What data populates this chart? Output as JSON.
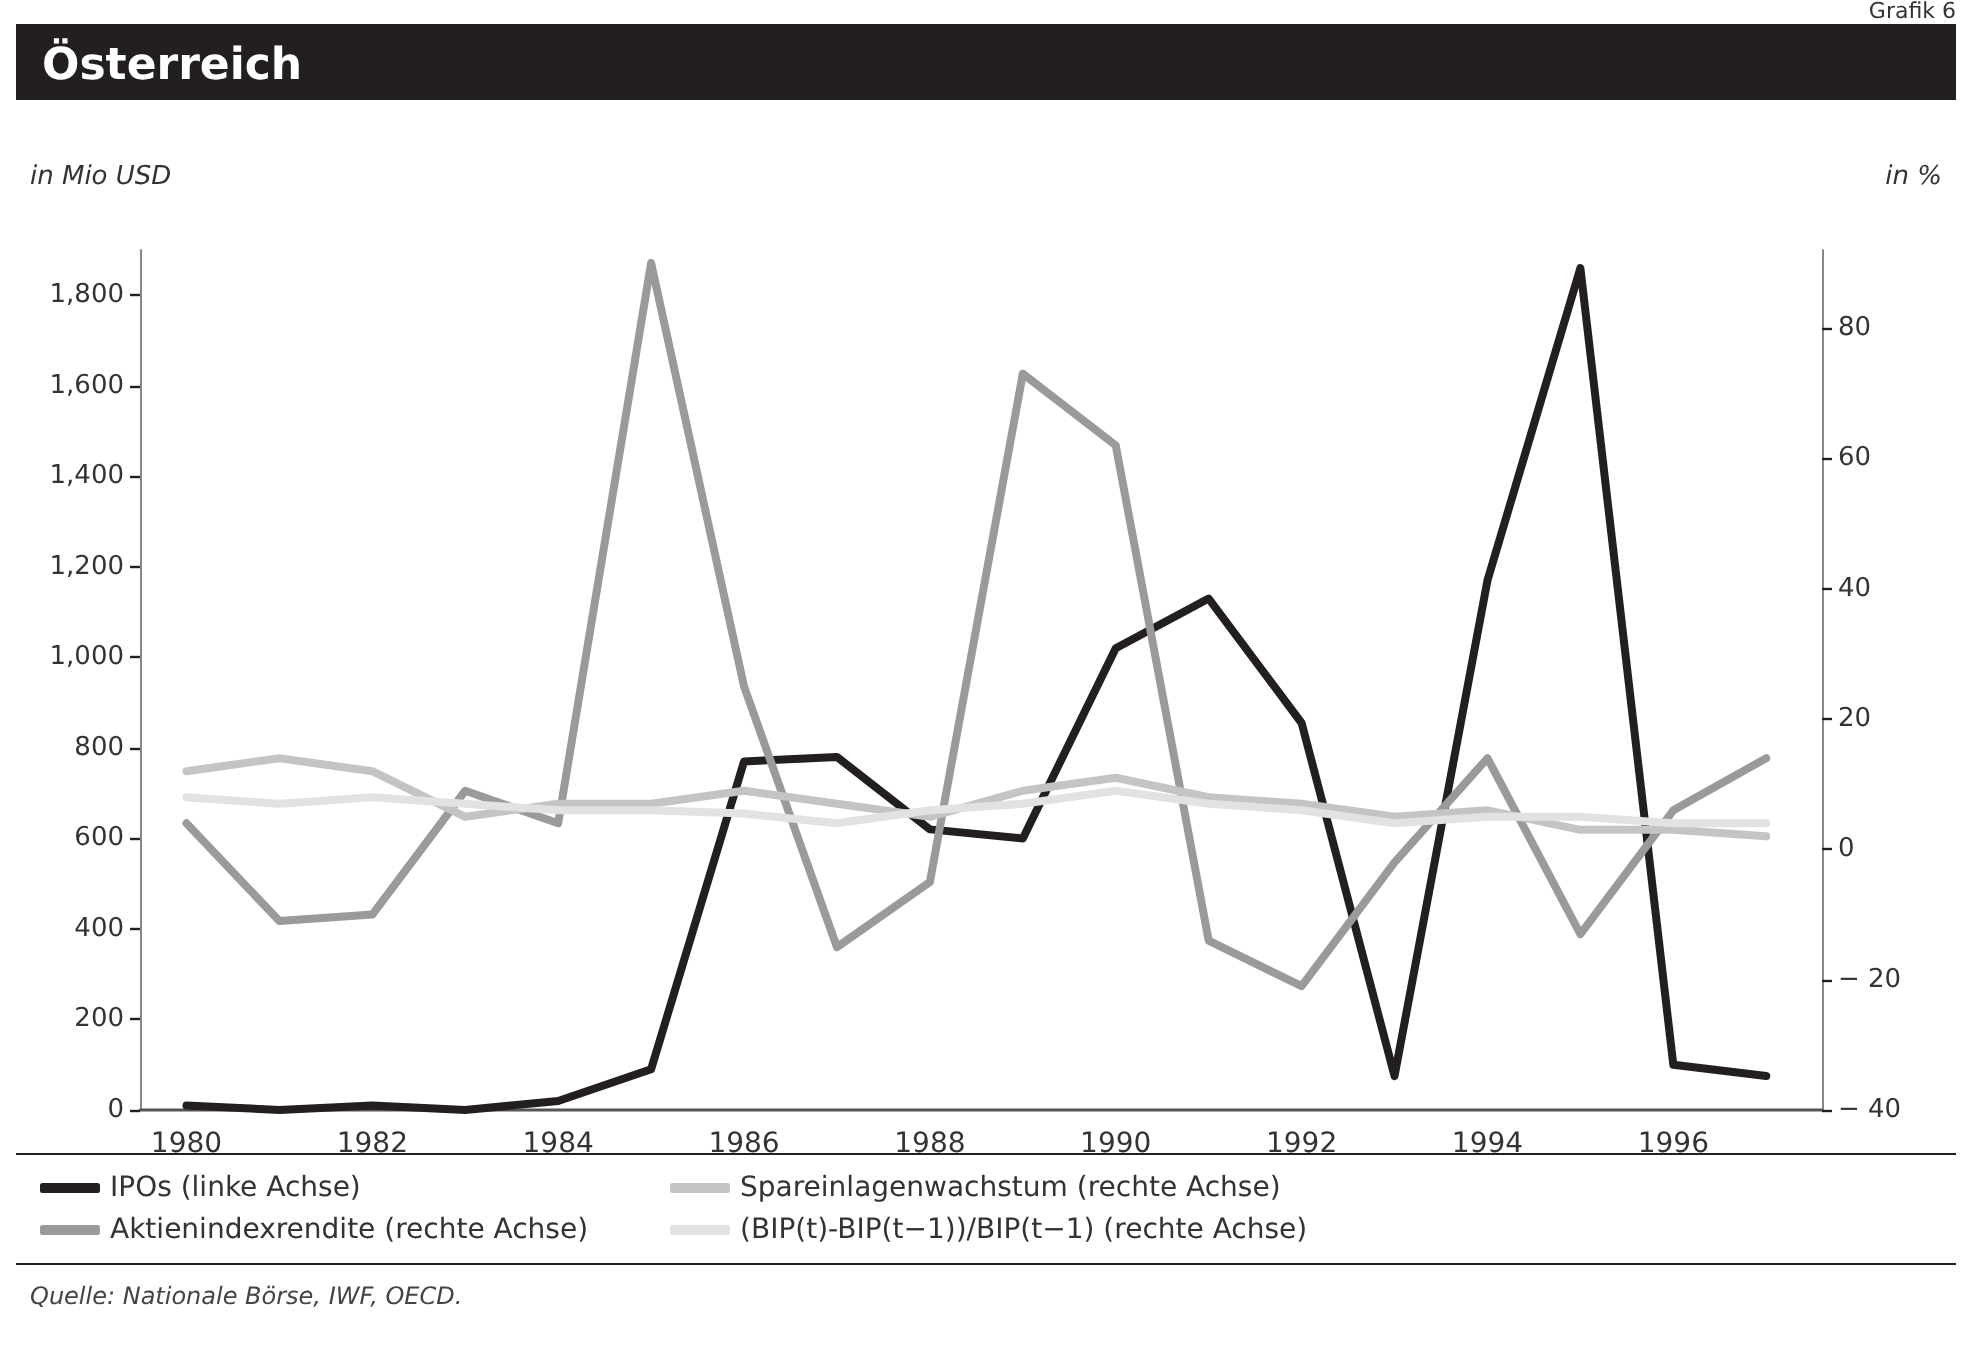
{
  "chart_data": {
    "type": "line",
    "title": "Österreich",
    "ylabel": "in Mio USD",
    "y2label": "in %",
    "x": [
      1980,
      1981,
      1982,
      1983,
      1984,
      1985,
      1986,
      1987,
      1988,
      1989,
      1990,
      1991,
      1992,
      1993,
      1994,
      1995,
      1996,
      1997
    ],
    "xlim": [
      1979.5,
      1997.6
    ],
    "xticks": [
      1980,
      1982,
      1984,
      1986,
      1988,
      1990,
      1992,
      1994,
      1996
    ],
    "ylim": [
      0,
      1900
    ],
    "yticks": [
      0,
      {
        "value": 200,
        "label": "200"
      },
      {
        "value": 400,
        "label": "400"
      },
      {
        "value": 600,
        "label": "600"
      },
      {
        "value": 800,
        "label": "800"
      },
      {
        "value": 1000,
        "label": "1,000"
      },
      {
        "value": 1200,
        "label": "1,200"
      },
      {
        "value": 1400,
        "label": "1,400"
      },
      {
        "value": 1600,
        "label": "1,600"
      },
      {
        "value": 1800,
        "label": "1,800"
      }
    ],
    "y2lim": [
      -40,
      92
    ],
    "y2ticks": [
      {
        "value": -40,
        "label": "− 40"
      },
      {
        "value": -20,
        "label": "− 20"
      },
      0,
      20,
      40,
      60,
      80
    ],
    "series": [
      {
        "name": "IPOs (linke Achse)",
        "color": "#231f20",
        "values": [
          10,
          0,
          10,
          0,
          20,
          90,
          770,
          780,
          620,
          600,
          1020,
          1130,
          855,
          75,
          1170,
          1860,
          100,
          75
        ]
      },
      {
        "name": "Aktienindexrendite (rechte Achse)",
        "color": "#9a9a9c",
        "axis": "y2",
        "values": [
          4,
          -11,
          -10,
          9,
          4,
          90,
          25,
          -15,
          -5,
          73,
          62,
          -14,
          -21,
          -2,
          14,
          -13,
          6,
          14
        ]
      },
      {
        "name": "Spareinlagenwachstum (rechte Achse)",
        "color": "#c4c4c6",
        "axis": "y2",
        "values": [
          12,
          14,
          12,
          5,
          7,
          7,
          9,
          7,
          5,
          9,
          11,
          8,
          7,
          5,
          6,
          3,
          3,
          2
        ]
      },
      {
        "name": "(BIP(t)-BIP(t−1))/BIP(t−1) (rechte Achse)",
        "color": "#e2e2e2",
        "axis": "y2",
        "values": [
          8,
          7,
          8,
          7,
          6,
          6,
          5.5,
          4,
          6,
          7,
          9,
          7,
          6,
          4,
          5,
          5,
          4,
          4
        ]
      }
    ],
    "grid": false,
    "legend": "bottom",
    "marker": "none",
    "line_style": "solid",
    "annotations": [
      "Grafik 6",
      "Quelle: Nationale Börse, IWF, OECD."
    ]
  }
}
